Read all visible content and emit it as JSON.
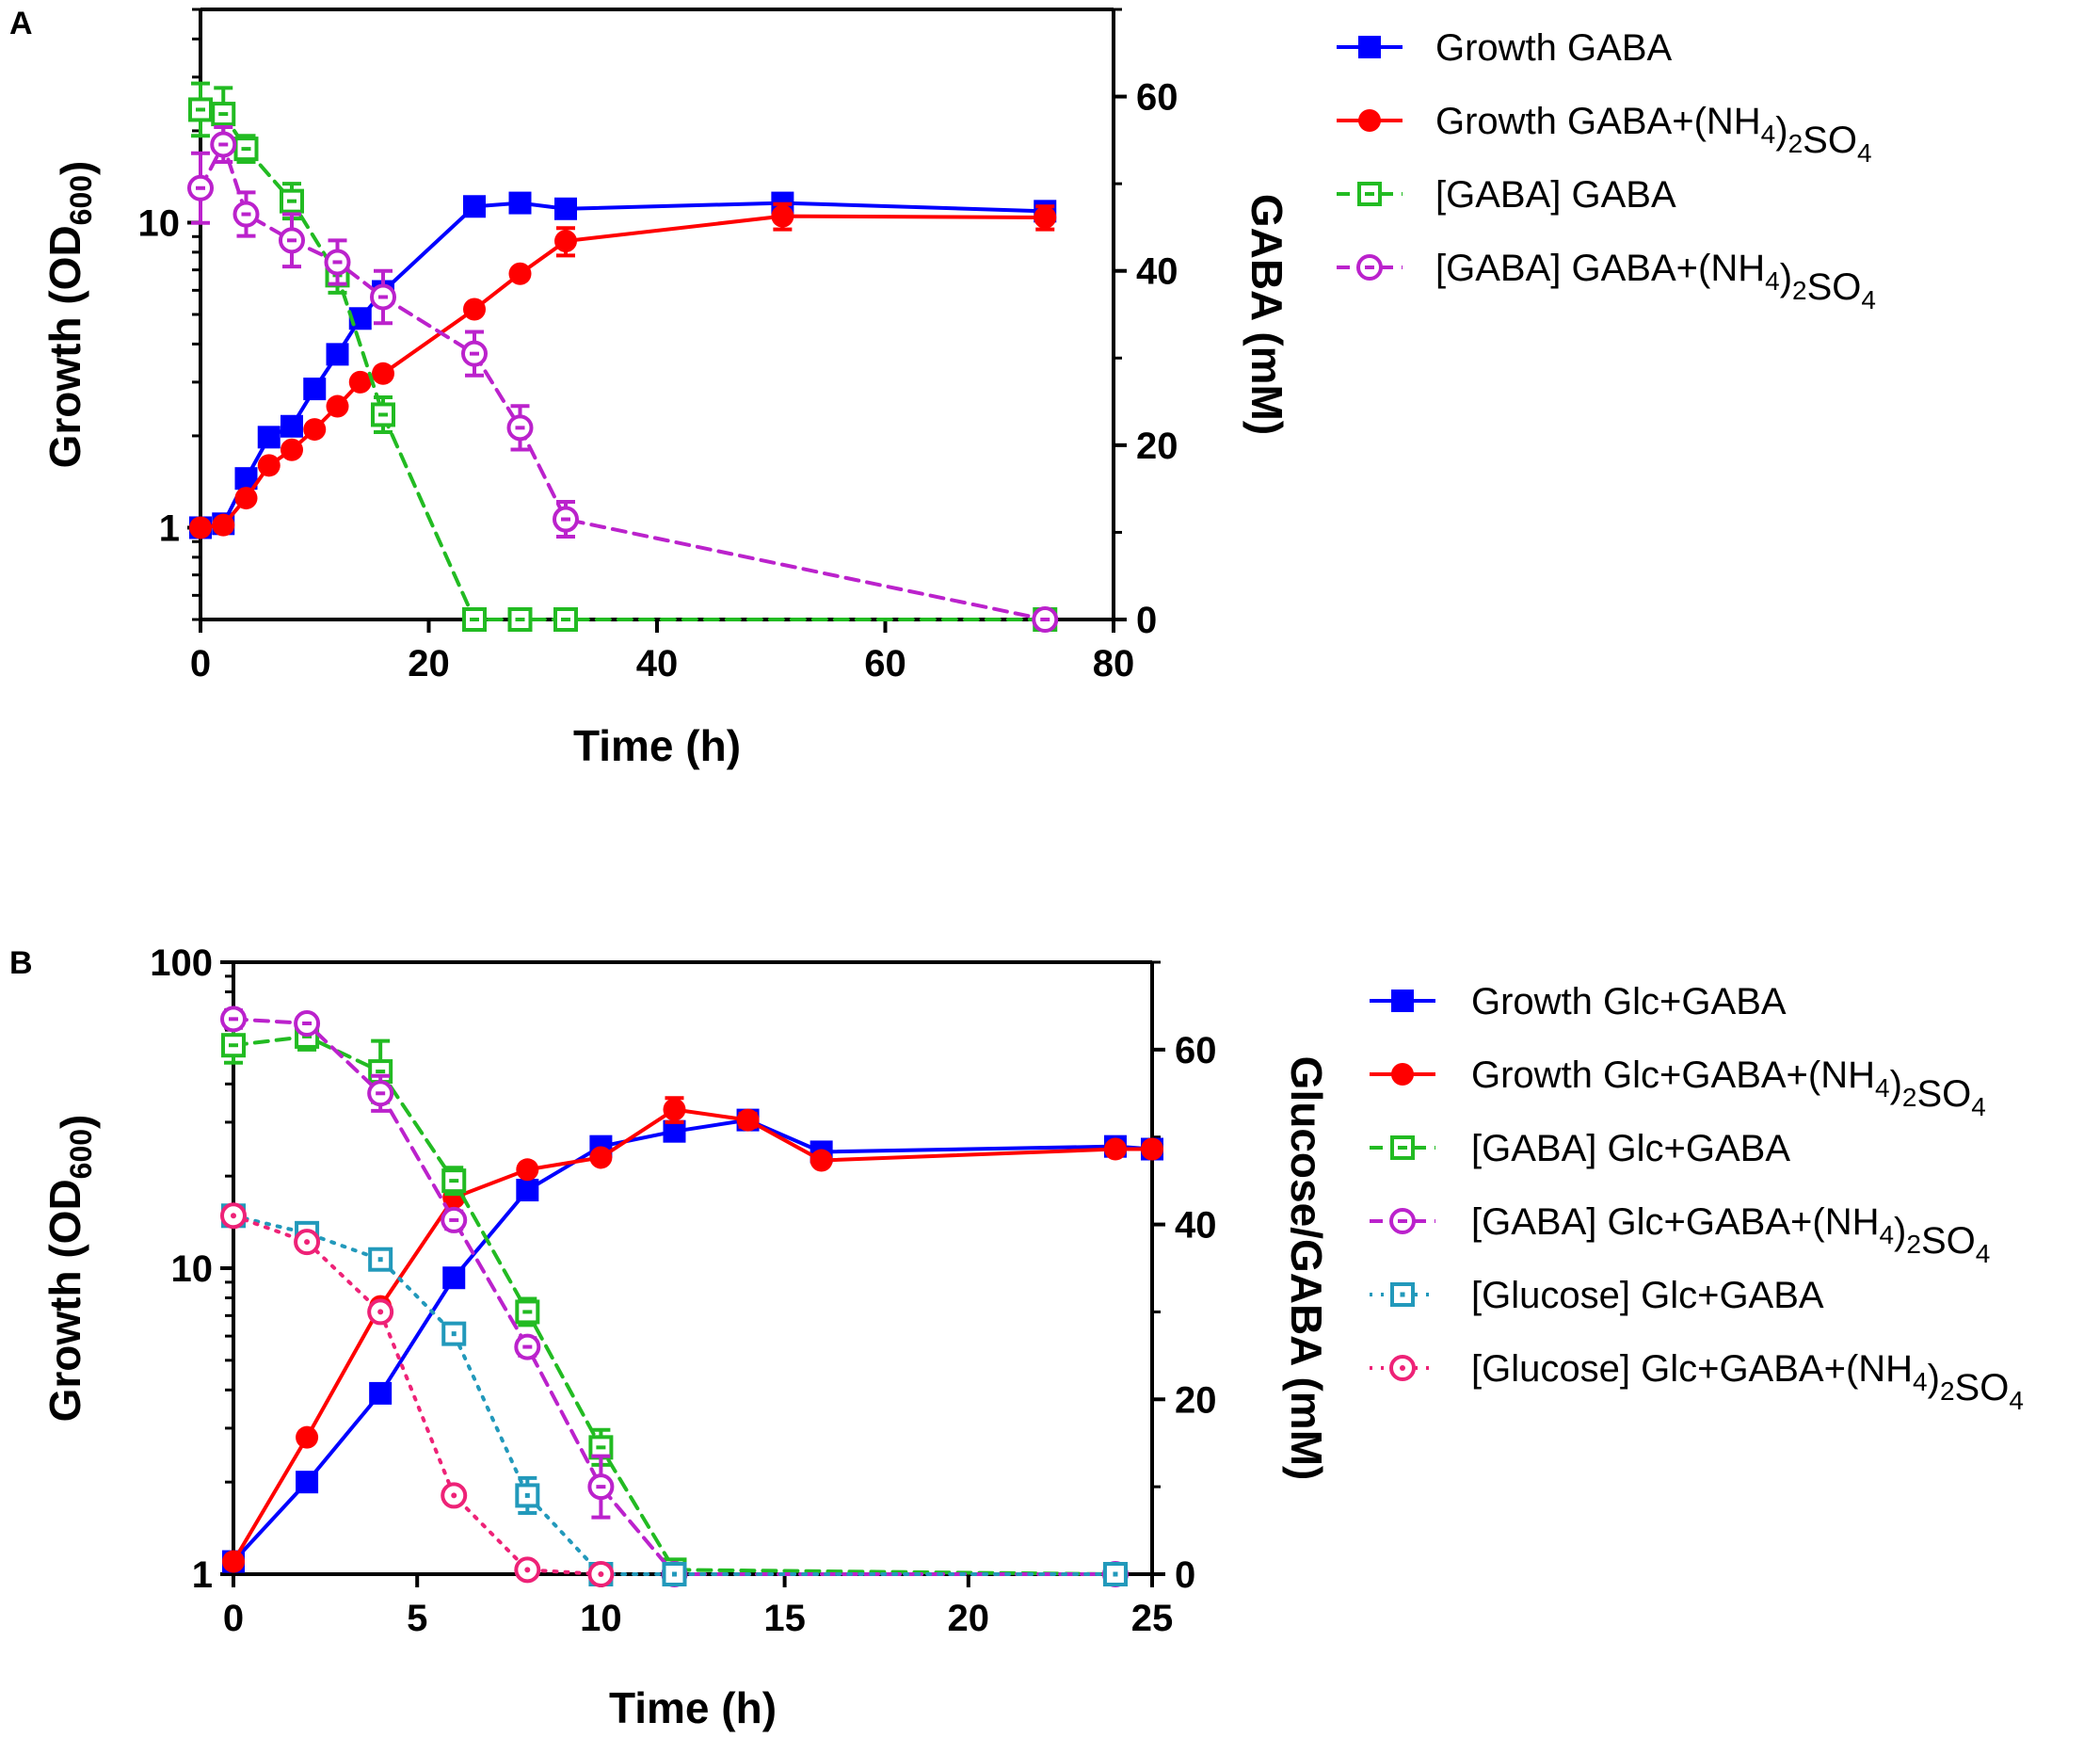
{
  "chart_data": [
    {
      "panel": "A",
      "type": "line",
      "xlabel": "Time (h)",
      "ylabel": "Growth (OD600)",
      "y2label": "GABA (mM)",
      "xlim": [
        0,
        80
      ],
      "ylim": [
        0.5,
        50
      ],
      "yscale": "log",
      "y2lim": [
        0,
        70
      ],
      "xticks": [
        0,
        20,
        40,
        60,
        80
      ],
      "yticks": [
        1,
        10
      ],
      "y2ticks": [
        0,
        20,
        40,
        60
      ],
      "series": [
        {
          "name": "Growth GABA",
          "axis": "left",
          "color": "#0000ff",
          "marker": "square-filled",
          "dash": "solid",
          "x": [
            0,
            2,
            4,
            6,
            8,
            10,
            12,
            14,
            16,
            24,
            28,
            32,
            51,
            74
          ],
          "y": [
            1.0,
            1.03,
            1.45,
            1.98,
            2.15,
            2.85,
            3.7,
            4.85,
            5.95,
            11.3,
            11.6,
            11.1,
            11.6,
            10.9
          ],
          "err": [
            0,
            0,
            0,
            0,
            0,
            0,
            0,
            0,
            0.4,
            0,
            0,
            0,
            0,
            0
          ]
        },
        {
          "name": "Growth GABA+(NH4)2SO4",
          "axis": "left",
          "color": "#ff0000",
          "marker": "circle-filled",
          "dash": "solid",
          "x": [
            0,
            2,
            4,
            6,
            8,
            10,
            12,
            14,
            16,
            24,
            28,
            32,
            51,
            74
          ],
          "y": [
            1.0,
            1.02,
            1.25,
            1.6,
            1.8,
            2.1,
            2.5,
            3.0,
            3.2,
            5.2,
            6.8,
            8.7,
            10.5,
            10.4
          ],
          "err": [
            0,
            0,
            0,
            0,
            0,
            0,
            0,
            0,
            0,
            0,
            0,
            0.9,
            1.0,
            0.9
          ]
        },
        {
          "name": "[GABA] GABA",
          "axis": "right",
          "color": "#22bb22",
          "marker": "square-open",
          "dash": "dashed",
          "x": [
            0,
            2,
            4,
            8,
            12,
            16,
            24,
            28,
            32,
            74
          ],
          "y": [
            58.5,
            58,
            54,
            48,
            39.5,
            23.5,
            0,
            0,
            0,
            0
          ],
          "err": [
            3,
            3,
            1.5,
            2,
            2,
            2,
            0,
            0,
            0,
            0
          ]
        },
        {
          "name": "[GABA] GABA+(NH4)2SO4",
          "axis": "right",
          "color": "#bb22cc",
          "marker": "circle-open",
          "dash": "dashed",
          "x": [
            0,
            2,
            4,
            8,
            12,
            16,
            24,
            28,
            32,
            74
          ],
          "y": [
            49.5,
            54.5,
            46.5,
            43.5,
            41,
            37,
            30.5,
            22,
            11.5,
            0
          ],
          "err": [
            4,
            2,
            2.5,
            3,
            2.5,
            3,
            2.5,
            2.5,
            2,
            0
          ]
        }
      ],
      "legend": [
        {
          "label": "Growth GABA",
          "sub": null
        },
        {
          "label": "Growth GABA+(NH4)2SO4",
          "sub": "nh4"
        },
        {
          "label": "[GABA] GABA",
          "sub": null
        },
        {
          "label": "[GABA] GABA+(NH4)2SO4",
          "sub": "nh4"
        }
      ]
    },
    {
      "panel": "B",
      "type": "line",
      "xlabel": "Time (h)",
      "ylabel": "Growth (OD600)",
      "y2label": "Glucose/GABA (mM)",
      "xlim": [
        0,
        25
      ],
      "ylim": [
        1,
        100
      ],
      "yscale": "log",
      "y2lim": [
        0,
        70
      ],
      "xticks": [
        0,
        5,
        10,
        15,
        20,
        25
      ],
      "yticks": [
        1,
        10,
        100
      ],
      "y2ticks": [
        0,
        20,
        40,
        60
      ],
      "series": [
        {
          "name": "Growth Glc+GABA",
          "axis": "left",
          "color": "#0000ff",
          "marker": "square-filled",
          "dash": "solid",
          "x": [
            0,
            2,
            4,
            6,
            8,
            10,
            12,
            14,
            16,
            24,
            25
          ],
          "y": [
            1.1,
            2.0,
            3.9,
            9.3,
            18,
            25,
            28,
            30.5,
            24,
            25,
            24.5
          ],
          "err": [
            0,
            0,
            0,
            0,
            0,
            0,
            0,
            1.5,
            0,
            0,
            0
          ]
        },
        {
          "name": "Growth Glc+GABA+(NH4)2SO4",
          "axis": "left",
          "color": "#ff0000",
          "marker": "circle-filled",
          "dash": "solid",
          "x": [
            0,
            2,
            4,
            6,
            8,
            10,
            12,
            14,
            16,
            24,
            25
          ],
          "y": [
            1.1,
            2.8,
            7.5,
            17,
            21,
            23,
            33,
            30.5,
            22.5,
            24.5,
            24.5
          ],
          "err": [
            0,
            0,
            0,
            0,
            0,
            0,
            3,
            1.5,
            0,
            0,
            0
          ]
        },
        {
          "name": "[GABA] Glc+GABA",
          "axis": "right",
          "color": "#22bb22",
          "marker": "square-open",
          "dash": "dashed",
          "x": [
            0,
            2,
            4,
            6,
            8,
            10,
            12,
            24
          ],
          "y": [
            60.5,
            61.5,
            57.5,
            45,
            30,
            14.5,
            0.5,
            0
          ],
          "err": [
            2,
            1.5,
            3.5,
            1.5,
            1.5,
            2,
            0,
            0
          ]
        },
        {
          "name": "[GABA] Glc+GABA+(NH4)2SO4",
          "axis": "right",
          "color": "#bb22cc",
          "marker": "circle-open",
          "dash": "dashed",
          "x": [
            0,
            2,
            4,
            6,
            8,
            10,
            12,
            24
          ],
          "y": [
            63.5,
            63,
            55,
            40.5,
            26,
            10,
            0,
            0
          ],
          "err": [
            1,
            0.5,
            2,
            1,
            1,
            3.5,
            0,
            0
          ]
        },
        {
          "name": "[Glucose] Glc+GABA",
          "axis": "right",
          "color": "#2299bb",
          "marker": "square-open-dot",
          "dash": "dotted",
          "x": [
            0,
            2,
            4,
            6,
            8,
            10,
            12,
            24
          ],
          "y": [
            41,
            39,
            36,
            27.5,
            9,
            0,
            0,
            0
          ],
          "err": [
            0.5,
            0.5,
            1,
            1,
            2,
            0,
            0,
            0
          ]
        },
        {
          "name": "[Glucose] Glc+GABA+(NH4)2SO4",
          "axis": "right",
          "color": "#ee2277",
          "marker": "circle-open-dot",
          "dash": "dotted",
          "x": [
            0,
            2,
            4,
            6,
            8,
            10
          ],
          "y": [
            41,
            38,
            30,
            9,
            0.5,
            0
          ],
          "err": [
            0,
            0,
            0,
            0,
            0,
            0
          ]
        }
      ],
      "legend": [
        {
          "label": "Growth Glc+GABA",
          "sub": null
        },
        {
          "label": "Growth Glc+GABA+(NH4)2SO4",
          "sub": "nh4"
        },
        {
          "label": "[GABA] Glc+GABA",
          "sub": null
        },
        {
          "label": "[GABA] Glc+GABA+(NH4)2SO4",
          "sub": "nh4"
        },
        {
          "label": "[Glucose] Glc+GABA",
          "sub": null
        },
        {
          "label": "[Glucose] Glc+GABA+(NH4)2SO4",
          "sub": "nh4"
        }
      ]
    }
  ]
}
